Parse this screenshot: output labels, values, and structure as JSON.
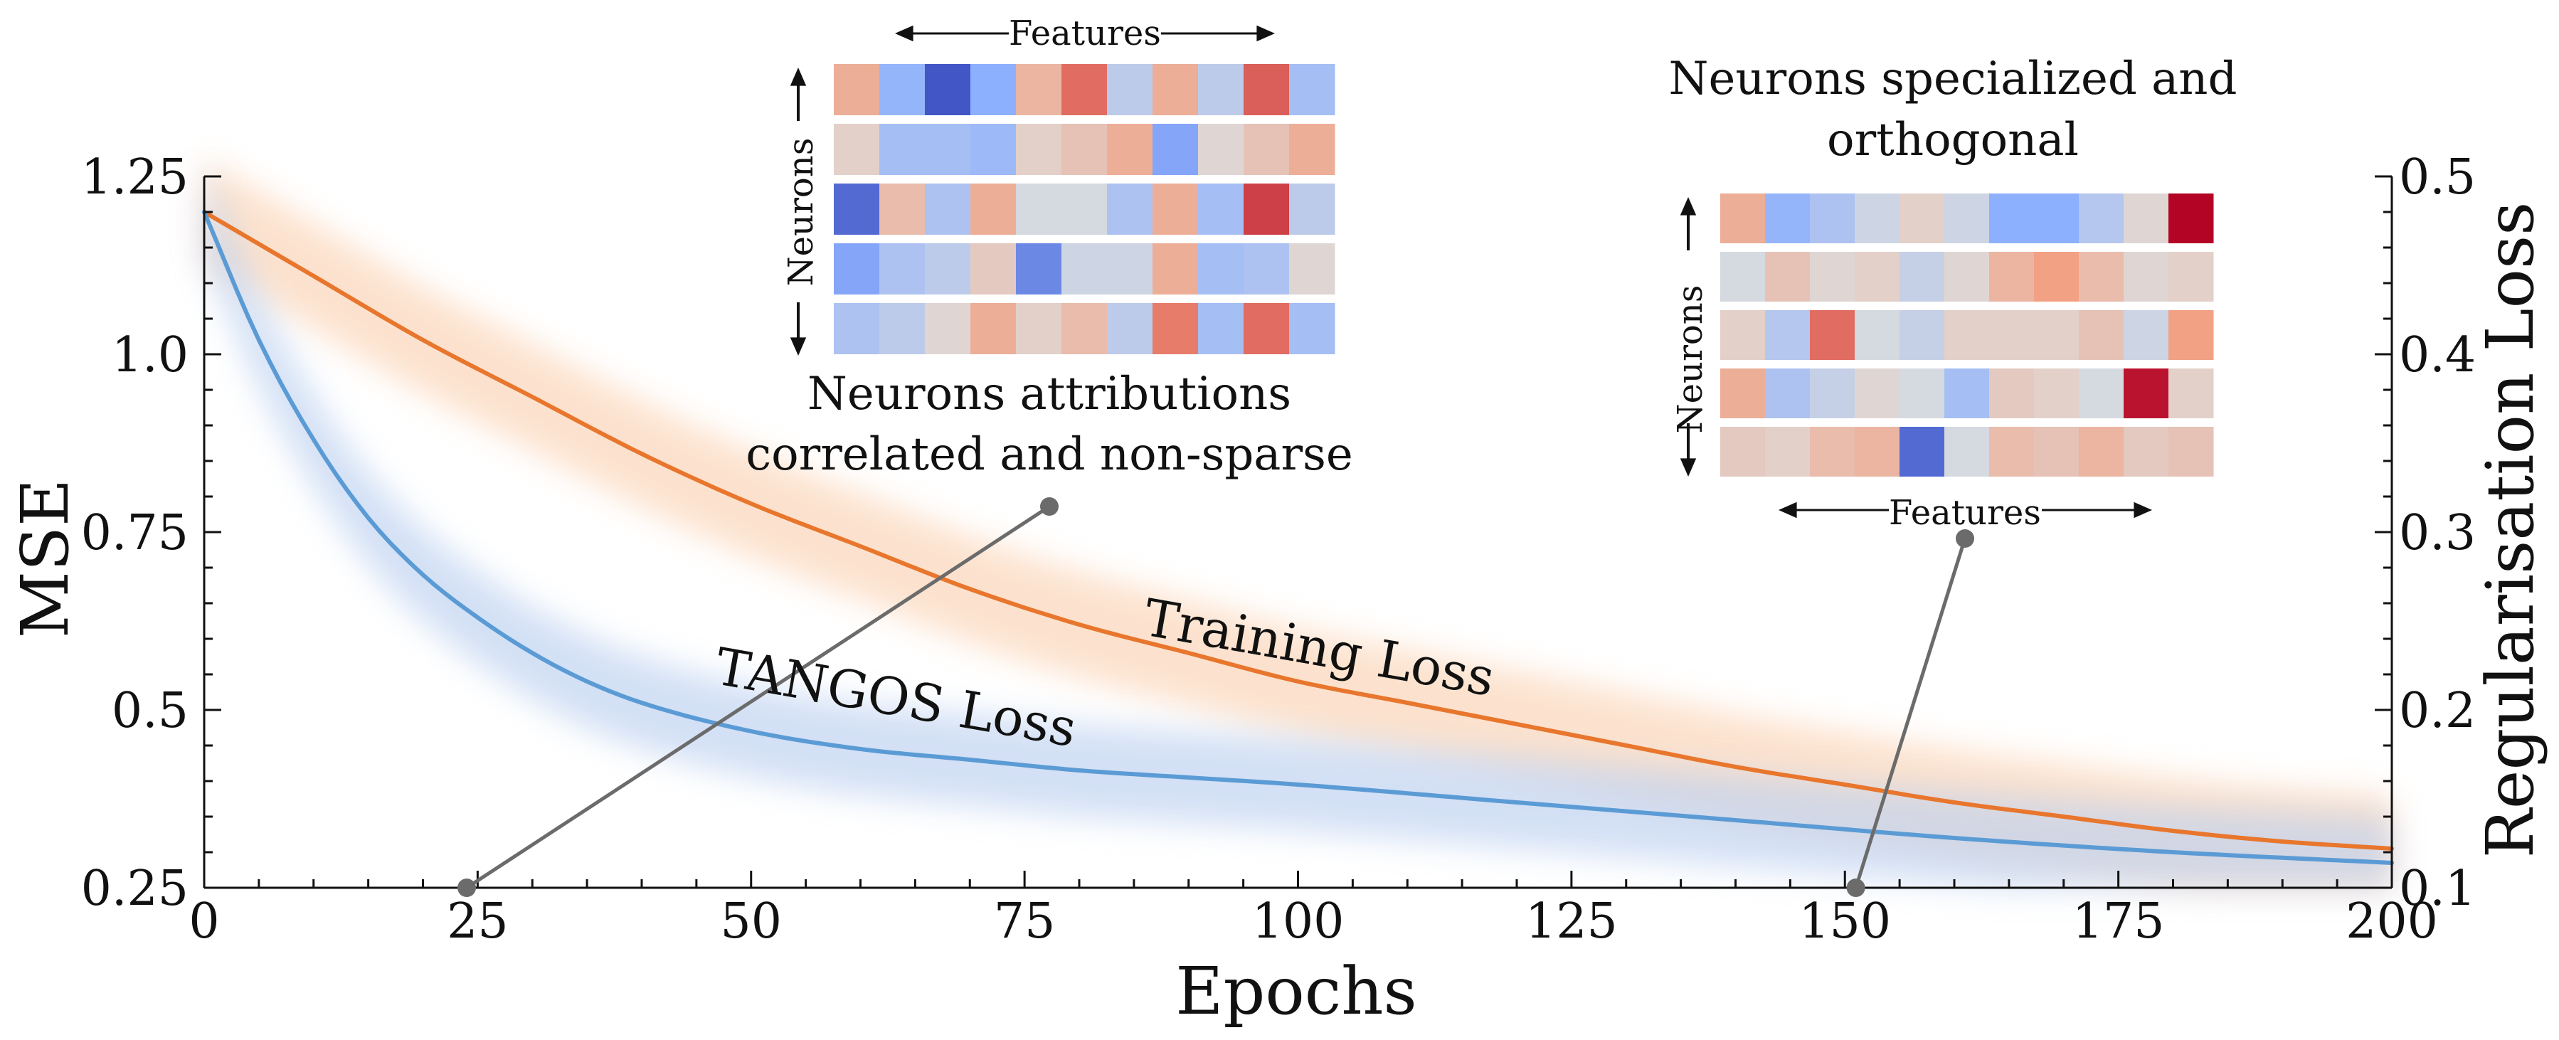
{
  "chart_data": {
    "type": "line",
    "xlabel": "Epochs",
    "ylabel": "MSE",
    "y2label": "Regularisation Loss",
    "xlim": [
      0,
      200
    ],
    "ylim": [
      0.25,
      1.25
    ],
    "y2lim": [
      0.1,
      0.5
    ],
    "x_ticks": [
      0,
      25,
      50,
      75,
      100,
      125,
      150,
      175,
      200
    ],
    "x_tick_labels": [
      "0",
      "25",
      "50",
      "75",
      "100",
      "125",
      "150",
      "175",
      "200"
    ],
    "y_ticks": [
      0.25,
      0.5,
      0.75,
      1.0,
      1.25
    ],
    "y_tick_labels": [
      "0.25",
      "0.5",
      "0.75",
      "1.0",
      "1.25"
    ],
    "y2_ticks": [
      0.1,
      0.2,
      0.3,
      0.4,
      0.5
    ],
    "y2_tick_labels": [
      "0.1",
      "0.2",
      "0.3",
      "0.4",
      "0.5"
    ],
    "grid": false,
    "series": [
      {
        "name": "Training Loss",
        "axis": "left",
        "color": "#e8762d",
        "x": [
          0,
          10,
          20,
          30,
          40,
          50,
          60,
          70,
          80,
          90,
          100,
          110,
          120,
          130,
          140,
          150,
          160,
          170,
          180,
          190,
          200
        ],
        "y": [
          1.2,
          1.11,
          1.02,
          0.94,
          0.86,
          0.79,
          0.73,
          0.67,
          0.62,
          0.58,
          0.54,
          0.51,
          0.48,
          0.45,
          0.42,
          0.395,
          0.37,
          0.35,
          0.33,
          0.315,
          0.305
        ]
      },
      {
        "name": "TANGOS Loss",
        "axis": "left",
        "color": "#5b9bd5",
        "x": [
          0,
          5,
          10,
          15,
          20,
          25,
          30,
          35,
          40,
          50,
          60,
          70,
          80,
          90,
          100,
          120,
          140,
          160,
          180,
          200
        ],
        "y": [
          1.2,
          1.02,
          0.88,
          0.77,
          0.69,
          0.63,
          0.58,
          0.54,
          0.51,
          0.47,
          0.445,
          0.43,
          0.415,
          0.405,
          0.395,
          0.37,
          0.345,
          0.32,
          0.3,
          0.285
        ]
      }
    ],
    "annotations": [
      {
        "id": "early",
        "x": 24,
        "lines": [
          "Neurons attributions",
          "correlated and non-sparse"
        ],
        "feature_label": "Features",
        "neuron_label": "Neurons",
        "heatmap": [
          [
            0.35,
            -0.45,
            -0.95,
            -0.5,
            0.3,
            0.65,
            -0.2,
            0.35,
            -0.2,
            0.7,
            -0.35
          ],
          [
            0.1,
            -0.35,
            -0.35,
            -0.4,
            0.1,
            0.2,
            0.35,
            -0.55,
            0.05,
            0.2,
            0.35
          ],
          [
            -0.85,
            0.25,
            -0.3,
            0.35,
            -0.05,
            -0.05,
            -0.3,
            0.35,
            -0.35,
            0.8,
            -0.2
          ],
          [
            -0.55,
            -0.3,
            -0.2,
            0.15,
            -0.7,
            -0.1,
            -0.1,
            0.35,
            -0.35,
            -0.3,
            0.05
          ],
          [
            -0.3,
            -0.2,
            0.05,
            0.35,
            0.1,
            0.25,
            -0.2,
            0.6,
            -0.35,
            0.65,
            -0.35
          ]
        ]
      },
      {
        "id": "late",
        "x": 151,
        "lines": [
          "Neurons specialized and",
          "orthogonal"
        ],
        "feature_label": "Features",
        "neuron_label": "Neurons",
        "heatmap": [
          [
            0.35,
            -0.45,
            -0.3,
            -0.1,
            0.1,
            -0.1,
            -0.5,
            -0.5,
            -0.25,
            0.05,
            1.0
          ],
          [
            -0.05,
            0.2,
            0.05,
            0.1,
            -0.15,
            0.05,
            0.3,
            0.45,
            0.25,
            0.05,
            0.1
          ],
          [
            0.1,
            -0.25,
            0.65,
            -0.05,
            -0.15,
            0.1,
            0.1,
            0.1,
            0.2,
            -0.1,
            0.45
          ],
          [
            0.35,
            -0.3,
            -0.15,
            0.05,
            -0.05,
            -0.35,
            0.15,
            0.1,
            -0.05,
            0.95,
            0.1
          ],
          [
            0.15,
            0.1,
            0.25,
            0.3,
            -0.85,
            -0.05,
            0.25,
            0.2,
            0.3,
            0.15,
            0.2
          ]
        ]
      }
    ]
  }
}
